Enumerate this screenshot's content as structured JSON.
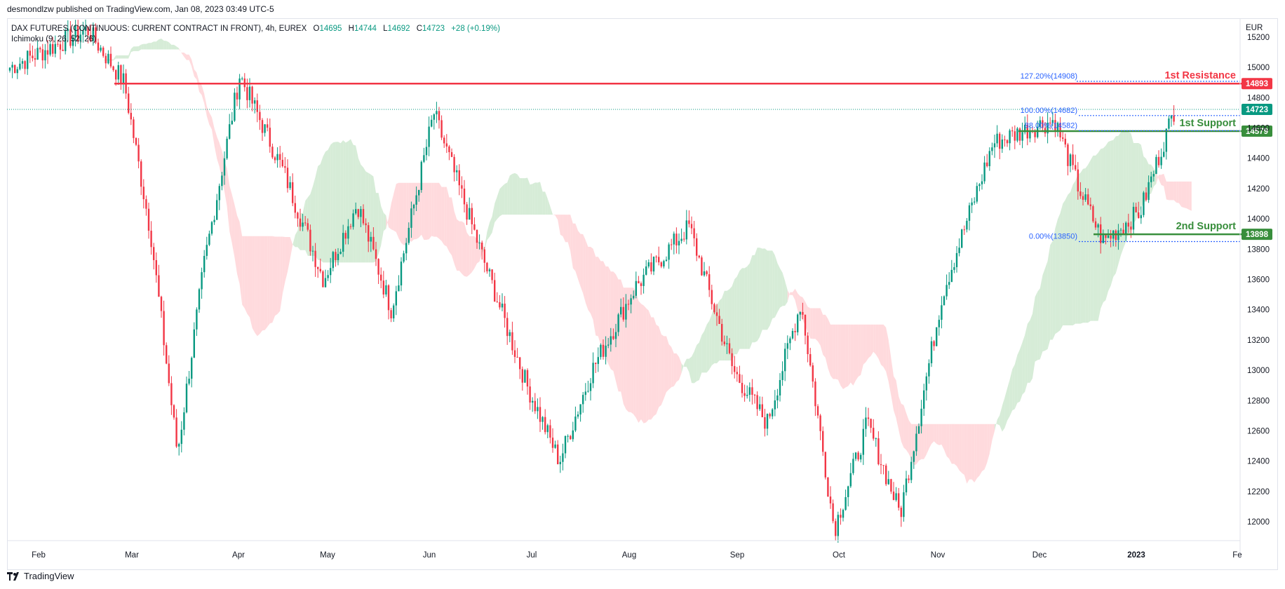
{
  "header": {
    "published": "desmondlzw published on TradingView.com, Jan 08, 2023 03:49 UTC-5"
  },
  "legend": {
    "symbol": "DAX FUTURES (CONTINUOUS: CURRENT CONTRACT IN FRONT), 4h, EUREX",
    "o_label": "O",
    "o_value": "14695",
    "h_label": "H",
    "h_value": "14744",
    "l_label": "L",
    "l_value": "14692",
    "c_label": "C",
    "c_value": "14723",
    "change": "+28 (+0.19%)",
    "indicator": "Ichimoku (9, 26, 52, 26)"
  },
  "currency": "EUR",
  "footer": {
    "brand": "TradingView"
  },
  "colors": {
    "up": "#089981",
    "down": "#f23645",
    "resistance": "#f23645",
    "support": "#388e3c",
    "fib": "#2962ff",
    "cloud_bull": "#c8e6c9",
    "cloud_bear": "#ffcdd2",
    "last_price": "#089981"
  },
  "chart_data": {
    "type": "candlestick",
    "timeframe": "4h",
    "x_ticks": [
      "Feb",
      "Mar",
      "Apr",
      "May",
      "Jun",
      "Jul",
      "Aug",
      "Sep",
      "Oct",
      "Nov",
      "Dec",
      "2023",
      "Fe"
    ],
    "y_ticks": [
      15200,
      15000,
      14800,
      14600,
      14400,
      14200,
      14000,
      13800,
      13600,
      13400,
      13200,
      13000,
      12800,
      12600,
      12400,
      12200,
      12000
    ],
    "ylim": [
      11880,
      15320
    ],
    "price_path": [
      [
        "Feb",
        15000
      ],
      [
        "Feb",
        15250
      ],
      [
        "Mar",
        14900
      ],
      [
        "Mar",
        13900
      ],
      [
        "Mar",
        12450
      ],
      [
        "Mar",
        13700
      ],
      [
        "Apr",
        14950
      ],
      [
        "Apr",
        14300
      ],
      [
        "May",
        13600
      ],
      [
        "May",
        14100
      ],
      [
        "May",
        13400
      ],
      [
        "Jun",
        14700
      ],
      [
        "Jun",
        13700
      ],
      [
        "Jul",
        12900
      ],
      [
        "Jul",
        12400
      ],
      [
        "Jul",
        13000
      ],
      [
        "Aug",
        13550
      ],
      [
        "Aug",
        13950
      ],
      [
        "Sep",
        13000
      ],
      [
        "Sep",
        12650
      ],
      [
        "Sep",
        13450
      ],
      [
        "Oct",
        11950
      ],
      [
        "Oct",
        12650
      ],
      [
        "Oct",
        12050
      ],
      [
        "Nov",
        13500
      ],
      [
        "Nov",
        14500
      ],
      [
        "Dec",
        14600
      ],
      [
        "Dec",
        14650
      ],
      [
        "Dec",
        14200
      ],
      [
        "Dec",
        13850
      ],
      [
        "2023",
        14050
      ],
      [
        "2023",
        14744
      ]
    ],
    "levels": [
      {
        "name": "1st Resistance",
        "value": 14893,
        "label": "14893",
        "type": "resistance"
      },
      {
        "name": "1st Support",
        "value": 14579,
        "label": "14579",
        "type": "support"
      },
      {
        "name": "2nd Support",
        "value": 13898,
        "label": "13898",
        "type": "support"
      }
    ],
    "last_price": {
      "value": 14723,
      "label": "14723"
    },
    "fibonacci": [
      {
        "label": "127.20%(14908)",
        "value": 14908
      },
      {
        "label": "100.00%(14682)",
        "value": 14682
      },
      {
        "label": "88.00%(14582)",
        "value": 14582
      },
      {
        "label": "0.00%(13850)",
        "value": 13850
      }
    ]
  }
}
